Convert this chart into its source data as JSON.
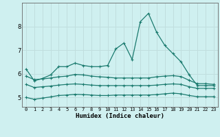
{
  "xlabel": "Humidex (Indice chaleur)",
  "background_color": "#cff0f0",
  "grid_color": "#c0dede",
  "line_color": "#1a7a6e",
  "x": [
    0,
    1,
    2,
    3,
    4,
    5,
    6,
    7,
    8,
    9,
    10,
    11,
    12,
    13,
    14,
    15,
    16,
    17,
    18,
    19,
    20,
    21,
    22,
    23
  ],
  "series": {
    "top": [
      6.2,
      5.7,
      5.8,
      5.95,
      6.3,
      6.3,
      6.45,
      6.35,
      6.3,
      6.3,
      6.35,
      7.05,
      7.3,
      6.6,
      8.2,
      8.55,
      7.75,
      7.2,
      6.85,
      6.5,
      5.95,
      5.5,
      5.5,
      5.5
    ],
    "mid1": [
      5.9,
      5.75,
      5.78,
      5.82,
      5.87,
      5.9,
      5.97,
      5.95,
      5.9,
      5.87,
      5.85,
      5.82,
      5.82,
      5.82,
      5.82,
      5.82,
      5.87,
      5.9,
      5.92,
      5.88,
      5.72,
      5.58,
      5.58,
      5.55
    ],
    "mid2": [
      5.55,
      5.42,
      5.45,
      5.48,
      5.52,
      5.55,
      5.57,
      5.55,
      5.52,
      5.5,
      5.5,
      5.5,
      5.5,
      5.5,
      5.5,
      5.5,
      5.52,
      5.55,
      5.57,
      5.55,
      5.45,
      5.38,
      5.38,
      5.38
    ],
    "bot": [
      5.0,
      4.92,
      4.97,
      5.02,
      5.08,
      5.1,
      5.13,
      5.12,
      5.1,
      5.08,
      5.08,
      5.1,
      5.1,
      5.1,
      5.1,
      5.1,
      5.12,
      5.15,
      5.18,
      5.15,
      5.08,
      5.03,
      5.03,
      5.03
    ]
  },
  "ylim": [
    4.6,
    9.0
  ],
  "yticks": [
    5,
    6,
    7,
    8
  ],
  "xlim": [
    -0.5,
    23.5
  ],
  "xticks": [
    0,
    1,
    2,
    3,
    4,
    5,
    6,
    7,
    8,
    9,
    10,
    11,
    12,
    13,
    14,
    15,
    16,
    17,
    18,
    19,
    20,
    21,
    22,
    23
  ],
  "xtick_labels": [
    "0",
    "1",
    "2",
    "3",
    "4",
    "5",
    "6",
    "7",
    "8",
    "9",
    "10",
    "11",
    "12",
    "13",
    "14",
    "15",
    "16",
    "17",
    "18",
    "19",
    "20",
    "21",
    "22",
    "23"
  ]
}
